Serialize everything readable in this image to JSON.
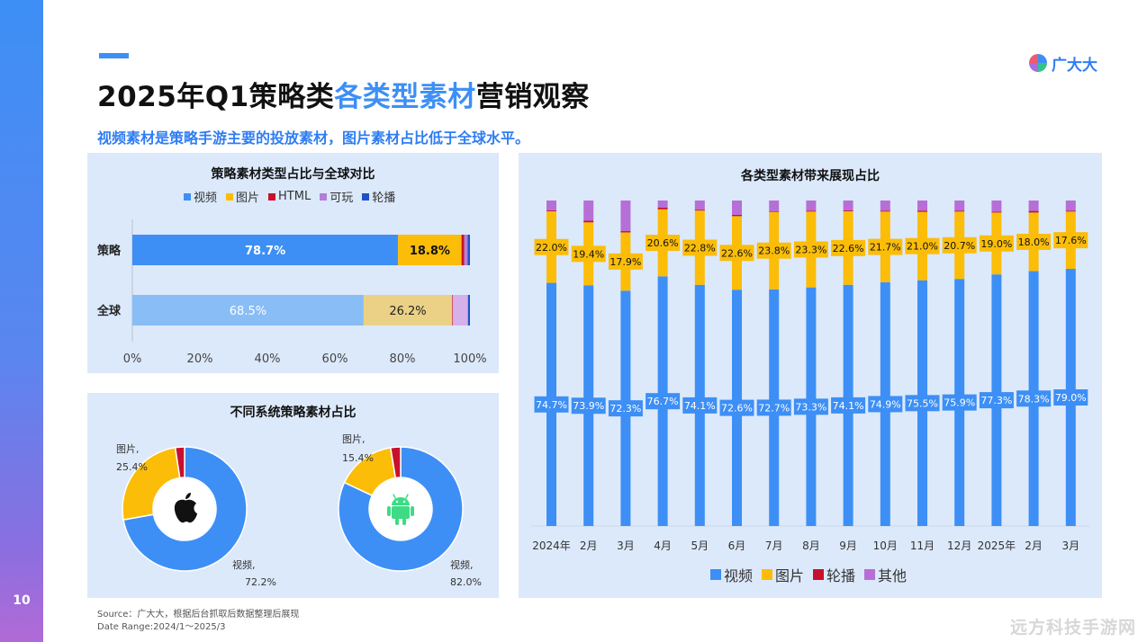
{
  "page": {
    "number": "10",
    "title_before": "2025年Q1策略类",
    "title_highlight": "各类型素材",
    "title_after": "营销观察",
    "subtitle": "视频素材是策略手游主要的投放素材，图片素材占比低于全球水平。",
    "logo_text": "广大大",
    "source_line1": "Source：广大大，根据后台抓取后数据整理后展现",
    "source_line2": "Date Range:2024/1～2025/3",
    "watermark": "远方科技手游网"
  },
  "colors": {
    "video": "#3d8ff5",
    "image": "#fbbd08",
    "html": "#c8102e",
    "playable": "#b57ed6",
    "carousel": "#1f52c8",
    "video_light": "#88bdf6",
    "image_light": "#ead185",
    "playable_light": "#d6b0e8",
    "other": "#b66fd6"
  },
  "chart_data": [
    {
      "type": "bar",
      "orientation": "horizontal",
      "stacked": true,
      "title": "策略素材类型占比与全球对比",
      "categories": [
        "策略",
        "全球"
      ],
      "series": [
        {
          "name": "视频",
          "values": [
            78.7,
            68.5
          ]
        },
        {
          "name": "图片",
          "values": [
            18.8,
            26.2
          ]
        },
        {
          "name": "HTML",
          "values": [
            0.8,
            0.2
          ]
        },
        {
          "name": "可玩",
          "values": [
            1.0,
            4.5
          ]
        },
        {
          "name": "轮播",
          "values": [
            0.7,
            0.6
          ]
        }
      ],
      "data_labels": [
        [
          "78.7%",
          "18.8%"
        ],
        [
          "68.5%",
          "26.2%"
        ]
      ],
      "xlim": [
        0,
        100
      ],
      "x_ticks": [
        "0%",
        "20%",
        "40%",
        "60%",
        "80%",
        "100%"
      ],
      "legend_position": "top"
    },
    {
      "type": "pie",
      "donut": true,
      "title": "不同系统策略素材占比",
      "charts": [
        {
          "system_icon": "apple-logo-icon",
          "slices": [
            {
              "name": "视频",
              "value": 72.2,
              "label_line1": "视频,",
              "label_line2": "72.2%"
            },
            {
              "name": "图片",
              "value": 25.4,
              "label_line1": "图片,",
              "label_line2": "25.4%"
            },
            {
              "name": "轮播",
              "value": 2.4
            }
          ]
        },
        {
          "system_icon": "android-robot-icon",
          "slices": [
            {
              "name": "视频",
              "value": 82.0,
              "label_line1": "视频,",
              "label_line2": "82.0%"
            },
            {
              "name": "图片",
              "value": 15.4,
              "label_line1": "图片,",
              "label_line2": "15.4%"
            },
            {
              "name": "轮播",
              "value": 2.6
            }
          ]
        }
      ]
    },
    {
      "type": "bar",
      "orientation": "vertical",
      "stacked": true,
      "percent": true,
      "title": "各类型素材带来展现占比",
      "categories": [
        "2024年",
        "2月",
        "3月",
        "4月",
        "5月",
        "6月",
        "7月",
        "8月",
        "9月",
        "10月",
        "11月",
        "12月",
        "2025年",
        "2月",
        "3月"
      ],
      "series": [
        {
          "name": "视频",
          "values": [
            74.7,
            73.9,
            72.3,
            76.7,
            74.1,
            72.6,
            72.7,
            73.3,
            74.1,
            74.9,
            75.5,
            75.9,
            77.3,
            78.3,
            79.0
          ],
          "labels": [
            "74.7%",
            "73.9%",
            "72.3%",
            "76.7%",
            "74.1%",
            "72.6%",
            "72.7%",
            "73.3%",
            "74.1%",
            "74.9%",
            "75.5%",
            "75.9%",
            "77.3%",
            "78.3%",
            "79.0%"
          ]
        },
        {
          "name": "图片",
          "values": [
            22.0,
            19.4,
            17.9,
            20.6,
            22.8,
            22.6,
            23.8,
            23.3,
            22.6,
            21.7,
            21.0,
            20.7,
            19.0,
            18.0,
            17.6
          ],
          "labels": [
            "22.0%",
            "19.4%",
            "17.9%",
            "20.6%",
            "22.8%",
            "22.6%",
            "23.8%",
            "23.3%",
            "22.6%",
            "21.7%",
            "21.0%",
            "20.7%",
            "19.0%",
            "18.0%",
            "17.6%"
          ]
        },
        {
          "name": "轮播",
          "values": [
            0.3,
            0.5,
            0.4,
            0.5,
            0.3,
            0.4,
            0.2,
            0.3,
            0.3,
            0.3,
            0.4,
            0.3,
            0.3,
            0.5,
            0.3
          ]
        },
        {
          "name": "其他",
          "values": [
            3.0,
            6.2,
            9.4,
            2.2,
            2.8,
            4.4,
            3.3,
            3.1,
            3.0,
            3.1,
            3.1,
            3.1,
            3.4,
            3.2,
            3.1
          ]
        }
      ],
      "ylim": [
        0,
        100
      ],
      "legend_position": "bottom"
    }
  ]
}
